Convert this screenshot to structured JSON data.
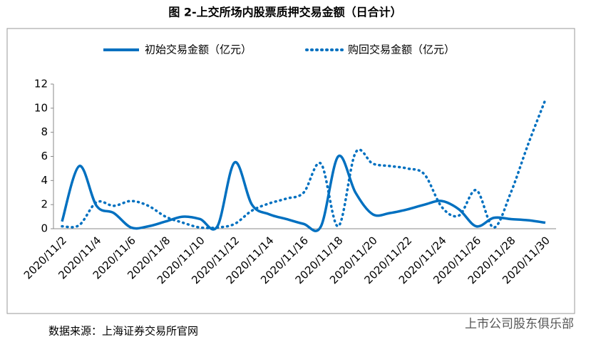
{
  "chart_data": {
    "type": "line",
    "title": "图 2-上交所场内股票质押交易金额（日合计）",
    "categories": [
      "2020/11/2",
      null,
      "2020/11/4",
      null,
      "2020/11/6",
      null,
      "2020/11/8",
      null,
      "2020/11/10",
      null,
      "2020/11/12",
      null,
      "2020/11/14",
      null,
      "2020/11/16",
      null,
      "2020/11/18",
      null,
      "2020/11/20",
      null,
      "2020/11/22",
      null,
      "2020/11/24",
      null,
      "2020/11/26",
      null,
      "2020/11/28",
      null,
      "2020/11/30"
    ],
    "series": [
      {
        "name": "初始交易金额（亿元）",
        "color": "#0070c0",
        "style": "solid",
        "values": [
          0.6,
          5.2,
          1.9,
          1.3,
          0.1,
          0.2,
          0.6,
          1.0,
          0.8,
          0.2,
          5.5,
          2.0,
          1.2,
          0.8,
          0.4,
          0.2,
          6.0,
          3.0,
          1.2,
          1.3,
          1.6,
          2.0,
          2.3,
          1.6,
          0.2,
          0.9,
          0.8,
          0.7,
          0.5
        ]
      },
      {
        "name": "购回交易金额（亿元）",
        "color": "#0070c0",
        "style": "dotted",
        "values": [
          0.2,
          0.3,
          2.2,
          1.9,
          2.3,
          1.9,
          1.0,
          0.5,
          0.1,
          0.1,
          0.4,
          1.5,
          2.1,
          2.5,
          3.0,
          5.4,
          0.2,
          6.3,
          5.4,
          5.2,
          5.0,
          4.5,
          1.8,
          1.1,
          3.2,
          0.1,
          3.0,
          7.0,
          10.7
        ]
      }
    ],
    "ylim": [
      0,
      12
    ],
    "yticks": [
      0,
      2,
      4,
      6,
      8,
      10,
      12
    ],
    "source": "数据来源：上海证券交易所官网",
    "watermark": "上市公司股东俱乐部"
  }
}
